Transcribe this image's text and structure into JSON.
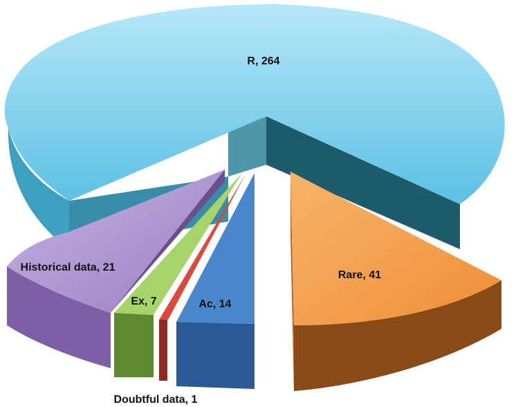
{
  "chart_data": {
    "type": "pie",
    "style": "3d-exploded",
    "title": "",
    "slices": [
      {
        "label": "R",
        "value": 264,
        "color": "#67C8E8"
      },
      {
        "label": "Rare",
        "value": 41,
        "color": "#F09A45"
      },
      {
        "label": "Ac",
        "value": 14,
        "color": "#4682C8"
      },
      {
        "label": "Doubtful data",
        "value": 1,
        "color": "#D9493C"
      },
      {
        "label": "Ex",
        "value": 7,
        "color": "#93C653"
      },
      {
        "label": "Historical data",
        "value": 21,
        "color": "#9C7FC4"
      }
    ],
    "data_labels": [
      "R, 264",
      "Rare, 41",
      "Ac, 14",
      "Doubtful data, 1",
      "Ex, 7",
      "Historical data, 21"
    ]
  }
}
